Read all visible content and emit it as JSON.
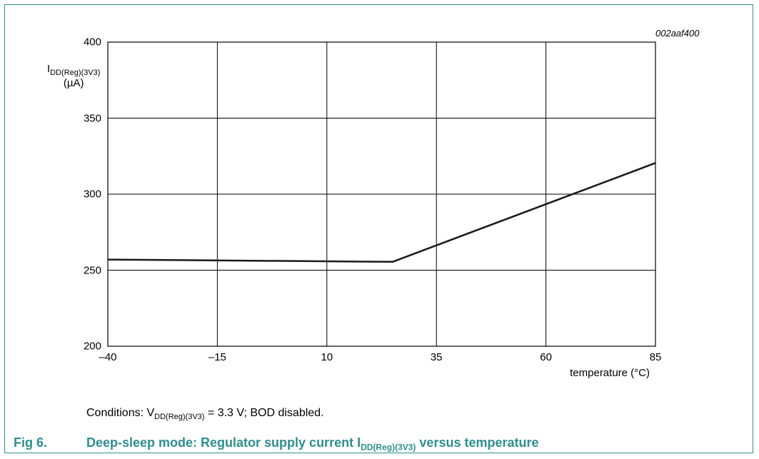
{
  "chart_data": {
    "type": "line",
    "figure_code": "002aaf400",
    "ylabel": {
      "main": "I",
      "sub": "DD(Reg)(3V3)",
      "unit": "(µA)"
    },
    "xlabel": "temperature (°C)",
    "xlim": [
      -40,
      85
    ],
    "ylim": [
      200,
      400
    ],
    "x_ticks": [
      -40,
      -15,
      10,
      35,
      60,
      85
    ],
    "x_tick_labels": [
      "–40",
      "–15",
      "10",
      "35",
      "60",
      "85"
    ],
    "y_ticks": [
      200,
      250,
      300,
      350,
      400
    ],
    "y_tick_labels": [
      "200",
      "250",
      "300",
      "350",
      "400"
    ],
    "grid": true,
    "series": [
      {
        "x": [
          -40,
          25,
          85
        ],
        "y": [
          257,
          255.5,
          320.5
        ]
      }
    ]
  },
  "conditions": {
    "prefix": "Conditions: V",
    "sub": "DD(Reg)(3V3)",
    "suffix": " = 3.3 V; BOD disabled."
  },
  "figure": {
    "number": "Fig 6.",
    "title_prefix": "Deep-sleep mode: Regulator supply current I",
    "title_sub": "DD(Reg)(3V3)",
    "title_suffix": " versus temperature"
  },
  "colors": {
    "accent": "#2f8d8d",
    "line": "#1a1a1a",
    "grid": "#000000"
  }
}
